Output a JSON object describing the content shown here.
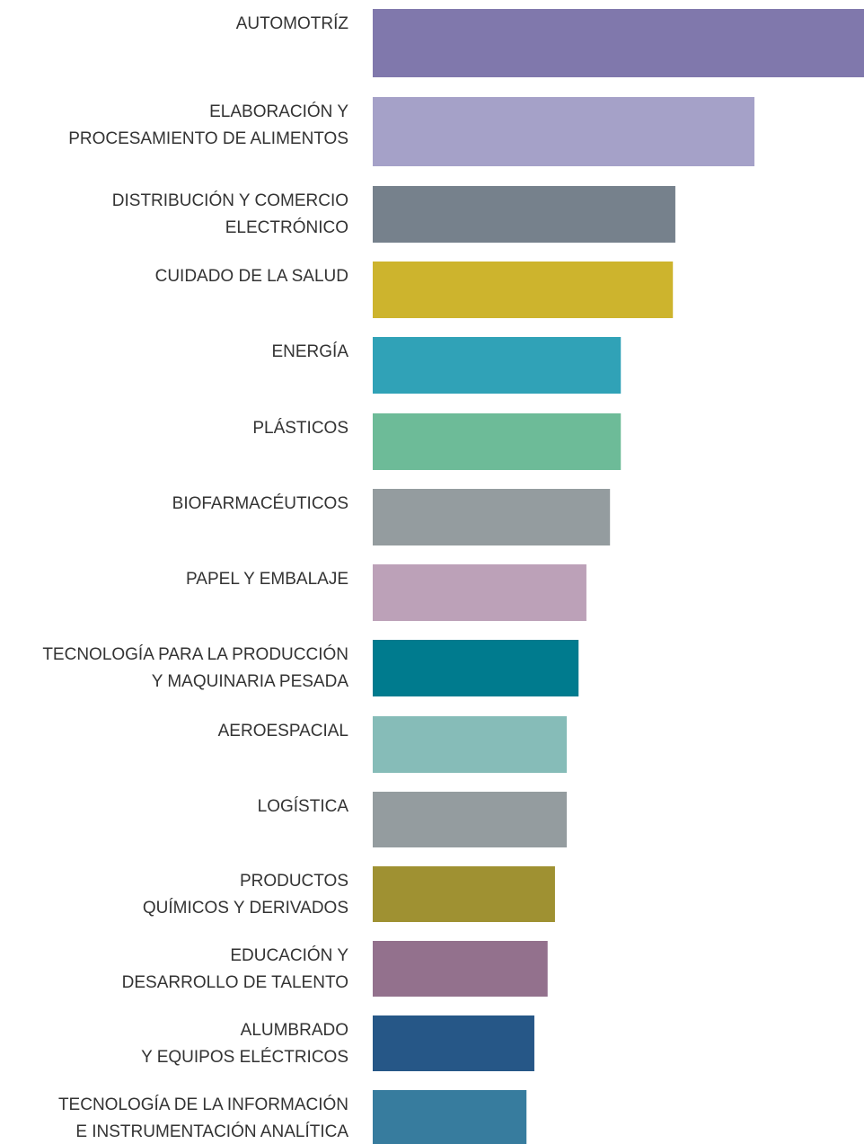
{
  "chart_data": {
    "type": "bar",
    "orientation": "horizontal",
    "categories": [
      "AUTOMOTRÍZ",
      "ELABORACIÓN Y\nPROCESAMIENTO DE ALIMENTOS",
      "DISTRIBUCIÓN Y COMERCIO\nELECTRÓNICO",
      "CUIDADO DE LA SALUD",
      "ENERGÍA",
      "PLÁSTICOS",
      "BIOFARMACÉUTICOS",
      "PAPEL Y EMBALAJE",
      "TECNOLOGÍA PARA LA PRODUCCIÓN\nY MAQUINARIA PESADA",
      "AEROESPACIAL",
      "LOGÍSTICA",
      "PRODUCTOS\nQUÍMICOS Y DERIVADOS",
      "EDUCACIÓN Y\nDESARROLLO DE TALENTO",
      "ALUMBRADO\nY EQUIPOS ELÉCTRICOS",
      "TECNOLOGÍA DE LA INFORMACIÓN\nE INSTRUMENTACIÓN ANALÍTICA"
    ],
    "values": [
      100,
      77.7,
      61.6,
      61.1,
      50.5,
      50.5,
      48.3,
      43.5,
      41.9,
      39.5,
      39.5,
      37.1,
      35.6,
      32.9,
      31.3
    ],
    "colors": [
      "#8078ac",
      "#a5a1c8",
      "#76818c",
      "#cdb42d",
      "#30a2b7",
      "#6dbb98",
      "#949c9f",
      "#bca1b8",
      "#007b8e",
      "#86bcb8",
      "#949c9f",
      "#9f9132",
      "#93718d",
      "#265787",
      "#377c9e"
    ],
    "xlim": [
      0,
      100
    ]
  }
}
